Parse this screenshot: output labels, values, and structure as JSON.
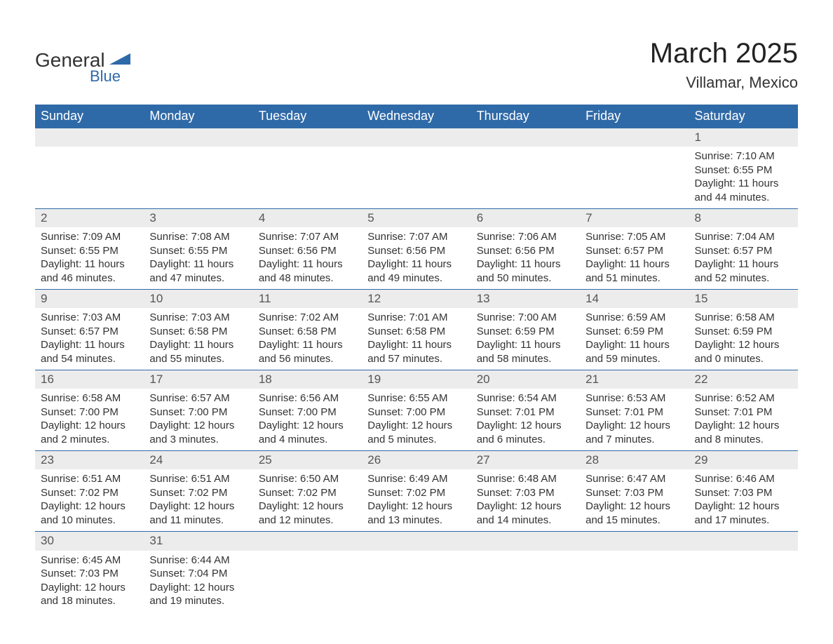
{
  "brand": {
    "name_part1": "General",
    "name_part2": "Blue",
    "mark_color": "#2f6aa8"
  },
  "title": {
    "month": "March 2025",
    "location": "Villamar, Mexico"
  },
  "colors": {
    "header_bg": "#2f6aa8",
    "header_text": "#ffffff",
    "daynum_bg": "#ececec",
    "row_border": "#2f6aa8",
    "body_text": "#333333",
    "page_bg": "#ffffff"
  },
  "daysOfWeek": [
    "Sunday",
    "Monday",
    "Tuesday",
    "Wednesday",
    "Thursday",
    "Friday",
    "Saturday"
  ],
  "weeks": [
    [
      {
        "day": "",
        "sunrise": "",
        "sunset": "",
        "daylight": ""
      },
      {
        "day": "",
        "sunrise": "",
        "sunset": "",
        "daylight": ""
      },
      {
        "day": "",
        "sunrise": "",
        "sunset": "",
        "daylight": ""
      },
      {
        "day": "",
        "sunrise": "",
        "sunset": "",
        "daylight": ""
      },
      {
        "day": "",
        "sunrise": "",
        "sunset": "",
        "daylight": ""
      },
      {
        "day": "",
        "sunrise": "",
        "sunset": "",
        "daylight": ""
      },
      {
        "day": "1",
        "sunrise": "Sunrise: 7:10 AM",
        "sunset": "Sunset: 6:55 PM",
        "daylight": "Daylight: 11 hours and 44 minutes."
      }
    ],
    [
      {
        "day": "2",
        "sunrise": "Sunrise: 7:09 AM",
        "sunset": "Sunset: 6:55 PM",
        "daylight": "Daylight: 11 hours and 46 minutes."
      },
      {
        "day": "3",
        "sunrise": "Sunrise: 7:08 AM",
        "sunset": "Sunset: 6:55 PM",
        "daylight": "Daylight: 11 hours and 47 minutes."
      },
      {
        "day": "4",
        "sunrise": "Sunrise: 7:07 AM",
        "sunset": "Sunset: 6:56 PM",
        "daylight": "Daylight: 11 hours and 48 minutes."
      },
      {
        "day": "5",
        "sunrise": "Sunrise: 7:07 AM",
        "sunset": "Sunset: 6:56 PM",
        "daylight": "Daylight: 11 hours and 49 minutes."
      },
      {
        "day": "6",
        "sunrise": "Sunrise: 7:06 AM",
        "sunset": "Sunset: 6:56 PM",
        "daylight": "Daylight: 11 hours and 50 minutes."
      },
      {
        "day": "7",
        "sunrise": "Sunrise: 7:05 AM",
        "sunset": "Sunset: 6:57 PM",
        "daylight": "Daylight: 11 hours and 51 minutes."
      },
      {
        "day": "8",
        "sunrise": "Sunrise: 7:04 AM",
        "sunset": "Sunset: 6:57 PM",
        "daylight": "Daylight: 11 hours and 52 minutes."
      }
    ],
    [
      {
        "day": "9",
        "sunrise": "Sunrise: 7:03 AM",
        "sunset": "Sunset: 6:57 PM",
        "daylight": "Daylight: 11 hours and 54 minutes."
      },
      {
        "day": "10",
        "sunrise": "Sunrise: 7:03 AM",
        "sunset": "Sunset: 6:58 PM",
        "daylight": "Daylight: 11 hours and 55 minutes."
      },
      {
        "day": "11",
        "sunrise": "Sunrise: 7:02 AM",
        "sunset": "Sunset: 6:58 PM",
        "daylight": "Daylight: 11 hours and 56 minutes."
      },
      {
        "day": "12",
        "sunrise": "Sunrise: 7:01 AM",
        "sunset": "Sunset: 6:58 PM",
        "daylight": "Daylight: 11 hours and 57 minutes."
      },
      {
        "day": "13",
        "sunrise": "Sunrise: 7:00 AM",
        "sunset": "Sunset: 6:59 PM",
        "daylight": "Daylight: 11 hours and 58 minutes."
      },
      {
        "day": "14",
        "sunrise": "Sunrise: 6:59 AM",
        "sunset": "Sunset: 6:59 PM",
        "daylight": "Daylight: 11 hours and 59 minutes."
      },
      {
        "day": "15",
        "sunrise": "Sunrise: 6:58 AM",
        "sunset": "Sunset: 6:59 PM",
        "daylight": "Daylight: 12 hours and 0 minutes."
      }
    ],
    [
      {
        "day": "16",
        "sunrise": "Sunrise: 6:58 AM",
        "sunset": "Sunset: 7:00 PM",
        "daylight": "Daylight: 12 hours and 2 minutes."
      },
      {
        "day": "17",
        "sunrise": "Sunrise: 6:57 AM",
        "sunset": "Sunset: 7:00 PM",
        "daylight": "Daylight: 12 hours and 3 minutes."
      },
      {
        "day": "18",
        "sunrise": "Sunrise: 6:56 AM",
        "sunset": "Sunset: 7:00 PM",
        "daylight": "Daylight: 12 hours and 4 minutes."
      },
      {
        "day": "19",
        "sunrise": "Sunrise: 6:55 AM",
        "sunset": "Sunset: 7:00 PM",
        "daylight": "Daylight: 12 hours and 5 minutes."
      },
      {
        "day": "20",
        "sunrise": "Sunrise: 6:54 AM",
        "sunset": "Sunset: 7:01 PM",
        "daylight": "Daylight: 12 hours and 6 minutes."
      },
      {
        "day": "21",
        "sunrise": "Sunrise: 6:53 AM",
        "sunset": "Sunset: 7:01 PM",
        "daylight": "Daylight: 12 hours and 7 minutes."
      },
      {
        "day": "22",
        "sunrise": "Sunrise: 6:52 AM",
        "sunset": "Sunset: 7:01 PM",
        "daylight": "Daylight: 12 hours and 8 minutes."
      }
    ],
    [
      {
        "day": "23",
        "sunrise": "Sunrise: 6:51 AM",
        "sunset": "Sunset: 7:02 PM",
        "daylight": "Daylight: 12 hours and 10 minutes."
      },
      {
        "day": "24",
        "sunrise": "Sunrise: 6:51 AM",
        "sunset": "Sunset: 7:02 PM",
        "daylight": "Daylight: 12 hours and 11 minutes."
      },
      {
        "day": "25",
        "sunrise": "Sunrise: 6:50 AM",
        "sunset": "Sunset: 7:02 PM",
        "daylight": "Daylight: 12 hours and 12 minutes."
      },
      {
        "day": "26",
        "sunrise": "Sunrise: 6:49 AM",
        "sunset": "Sunset: 7:02 PM",
        "daylight": "Daylight: 12 hours and 13 minutes."
      },
      {
        "day": "27",
        "sunrise": "Sunrise: 6:48 AM",
        "sunset": "Sunset: 7:03 PM",
        "daylight": "Daylight: 12 hours and 14 minutes."
      },
      {
        "day": "28",
        "sunrise": "Sunrise: 6:47 AM",
        "sunset": "Sunset: 7:03 PM",
        "daylight": "Daylight: 12 hours and 15 minutes."
      },
      {
        "day": "29",
        "sunrise": "Sunrise: 6:46 AM",
        "sunset": "Sunset: 7:03 PM",
        "daylight": "Daylight: 12 hours and 17 minutes."
      }
    ],
    [
      {
        "day": "30",
        "sunrise": "Sunrise: 6:45 AM",
        "sunset": "Sunset: 7:03 PM",
        "daylight": "Daylight: 12 hours and 18 minutes."
      },
      {
        "day": "31",
        "sunrise": "Sunrise: 6:44 AM",
        "sunset": "Sunset: 7:04 PM",
        "daylight": "Daylight: 12 hours and 19 minutes."
      },
      {
        "day": "",
        "sunrise": "",
        "sunset": "",
        "daylight": ""
      },
      {
        "day": "",
        "sunrise": "",
        "sunset": "",
        "daylight": ""
      },
      {
        "day": "",
        "sunrise": "",
        "sunset": "",
        "daylight": ""
      },
      {
        "day": "",
        "sunrise": "",
        "sunset": "",
        "daylight": ""
      },
      {
        "day": "",
        "sunrise": "",
        "sunset": "",
        "daylight": ""
      }
    ]
  ]
}
